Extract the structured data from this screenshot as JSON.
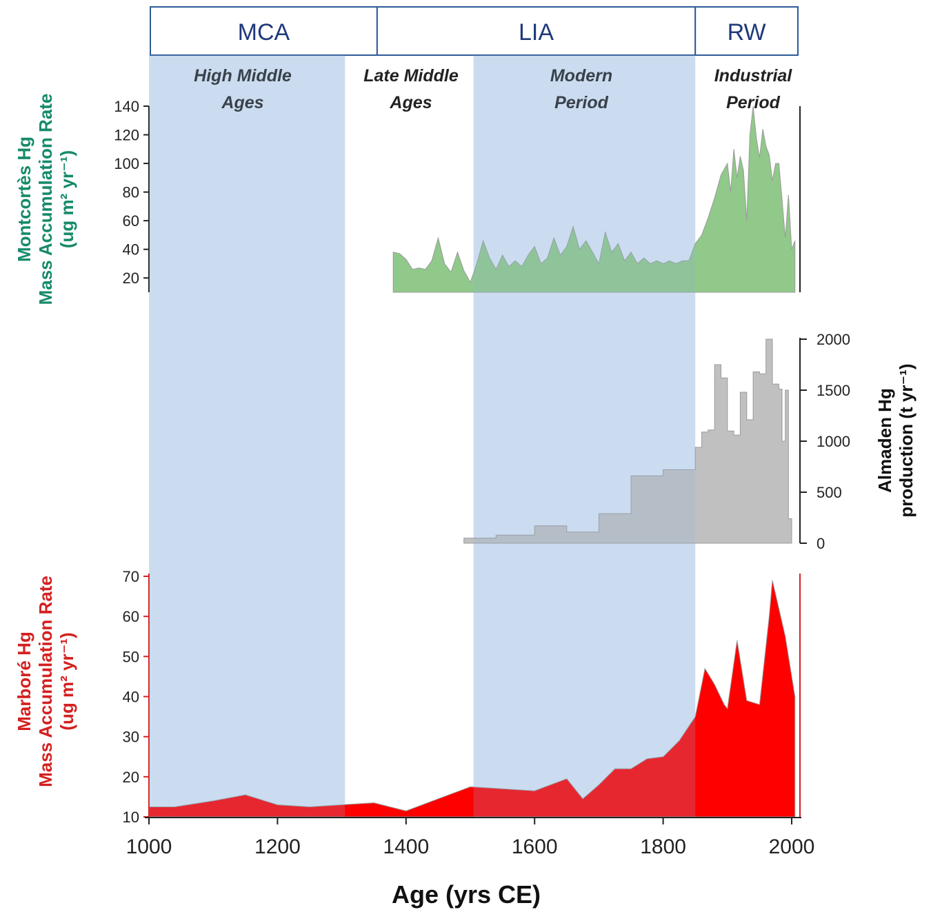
{
  "chart_data": {
    "type": "area",
    "x_axis": {
      "label": "Age (yrs CE)",
      "range": [
        1000,
        2010
      ],
      "ticks": [
        1000,
        1200,
        1400,
        1600,
        1800,
        2000
      ]
    },
    "climate_periods": [
      {
        "label": "MCA",
        "start": 1000,
        "end": 1355
      },
      {
        "label": "LIA",
        "start": 1355,
        "end": 1850
      },
      {
        "label": "RW",
        "start": 1850,
        "end": 2010
      }
    ],
    "historical_eras": [
      {
        "lines": [
          "High Middle",
          "Ages"
        ],
        "start": 1000,
        "end": 1305,
        "shaded": true
      },
      {
        "lines": [
          "Late Middle",
          "Ages"
        ],
        "start": 1305,
        "end": 1505,
        "shaded": false
      },
      {
        "lines": [
          "Modern",
          "Period"
        ],
        "start": 1505,
        "end": 1850,
        "shaded": true
      },
      {
        "lines": [
          "Industrial",
          "Period"
        ],
        "start": 1850,
        "end": 2010,
        "shaded": false
      }
    ],
    "colors": {
      "shading": "#dde8f6",
      "box_border": "#2e5a99",
      "montcortes": "#90c98a",
      "almaden": "#c0c0c0",
      "marbore": "#ff0000",
      "montcortes_label": "#168a6a",
      "marbore_label": "#d42020"
    },
    "series": [
      {
        "id": "montcortes",
        "ylabel_lines": [
          "Montcortès Hg",
          "Mass Accumulation Rate",
          "(ug m² yr⁻¹)"
        ],
        "ylim": [
          10,
          140
        ],
        "yticks": [
          20,
          40,
          60,
          80,
          100,
          120,
          140
        ],
        "axis_side": "left",
        "x": [
          1380,
          1390,
          1400,
          1410,
          1420,
          1430,
          1440,
          1450,
          1460,
          1470,
          1480,
          1490,
          1500,
          1510,
          1520,
          1530,
          1540,
          1550,
          1560,
          1570,
          1580,
          1590,
          1600,
          1610,
          1620,
          1630,
          1640,
          1650,
          1660,
          1670,
          1680,
          1690,
          1700,
          1710,
          1720,
          1730,
          1740,
          1750,
          1760,
          1770,
          1780,
          1790,
          1800,
          1810,
          1820,
          1830,
          1840,
          1850,
          1860,
          1870,
          1880,
          1890,
          1900,
          1905,
          1910,
          1915,
          1920,
          1925,
          1930,
          1935,
          1940,
          1945,
          1950,
          1955,
          1960,
          1965,
          1970,
          1975,
          1980,
          1985,
          1990,
          1995,
          2000,
          2005
        ],
        "values": [
          38,
          37,
          33,
          26,
          27,
          26,
          32,
          48,
          30,
          24,
          38,
          25,
          17,
          30,
          46,
          34,
          26,
          36,
          28,
          32,
          28,
          36,
          42,
          30,
          34,
          48,
          36,
          42,
          56,
          40,
          46,
          38,
          30,
          52,
          38,
          44,
          32,
          38,
          30,
          34,
          30,
          32,
          30,
          32,
          30,
          32,
          32,
          44,
          50,
          62,
          76,
          92,
          100,
          80,
          110,
          90,
          105,
          95,
          60,
          120,
          140,
          118,
          104,
          124,
          112,
          106,
          88,
          100,
          100,
          75,
          48,
          78,
          40,
          46
        ]
      },
      {
        "id": "almaden",
        "ylabel_lines": [
          "Almaden Hg",
          "production (t yr⁻¹)"
        ],
        "ylim": [
          0,
          2000
        ],
        "yticks": [
          0,
          500,
          1000,
          1500,
          2000
        ],
        "axis_side": "right",
        "x": [
          1490,
          1540,
          1540,
          1600,
          1600,
          1650,
          1650,
          1700,
          1700,
          1750,
          1750,
          1800,
          1800,
          1850,
          1850,
          1860,
          1860,
          1870,
          1870,
          1880,
          1880,
          1890,
          1890,
          1900,
          1900,
          1910,
          1910,
          1920,
          1920,
          1930,
          1930,
          1940,
          1940,
          1950,
          1950,
          1960,
          1960,
          1970,
          1970,
          1980,
          1980,
          1985,
          1985,
          1990,
          1990,
          1995,
          1995,
          2000
        ],
        "values": [
          50,
          50,
          80,
          80,
          170,
          170,
          110,
          110,
          290,
          290,
          660,
          660,
          720,
          720,
          940,
          940,
          1090,
          1090,
          1110,
          1110,
          1750,
          1750,
          1620,
          1620,
          1100,
          1100,
          1060,
          1060,
          1480,
          1480,
          1210,
          1210,
          1680,
          1680,
          1660,
          1660,
          2000,
          2000,
          1560,
          1560,
          1510,
          1510,
          1000,
          1000,
          1500,
          1500,
          240,
          240
        ]
      },
      {
        "id": "marbore",
        "ylabel_lines": [
          "Marboré Hg",
          "Mass Accumulation Rate",
          "(ug m² yr⁻¹)"
        ],
        "ylim": [
          10,
          70
        ],
        "yticks": [
          10,
          20,
          30,
          40,
          50,
          60,
          70
        ],
        "axis_side": "left",
        "x": [
          1000,
          1040,
          1100,
          1150,
          1200,
          1250,
          1300,
          1350,
          1400,
          1450,
          1500,
          1550,
          1600,
          1650,
          1675,
          1700,
          1725,
          1750,
          1775,
          1800,
          1825,
          1850,
          1865,
          1880,
          1895,
          1900,
          1915,
          1930,
          1950,
          1965,
          1970,
          1990,
          2005
        ],
        "values": [
          12.5,
          12.5,
          14,
          15.5,
          13,
          12.5,
          13,
          13.5,
          11.5,
          14.5,
          17.5,
          17,
          16.5,
          19.5,
          14.5,
          18,
          22,
          22,
          24.5,
          25,
          29,
          35,
          47,
          43,
          38,
          37,
          54,
          39,
          38,
          60,
          69,
          55,
          40
        ]
      }
    ]
  }
}
